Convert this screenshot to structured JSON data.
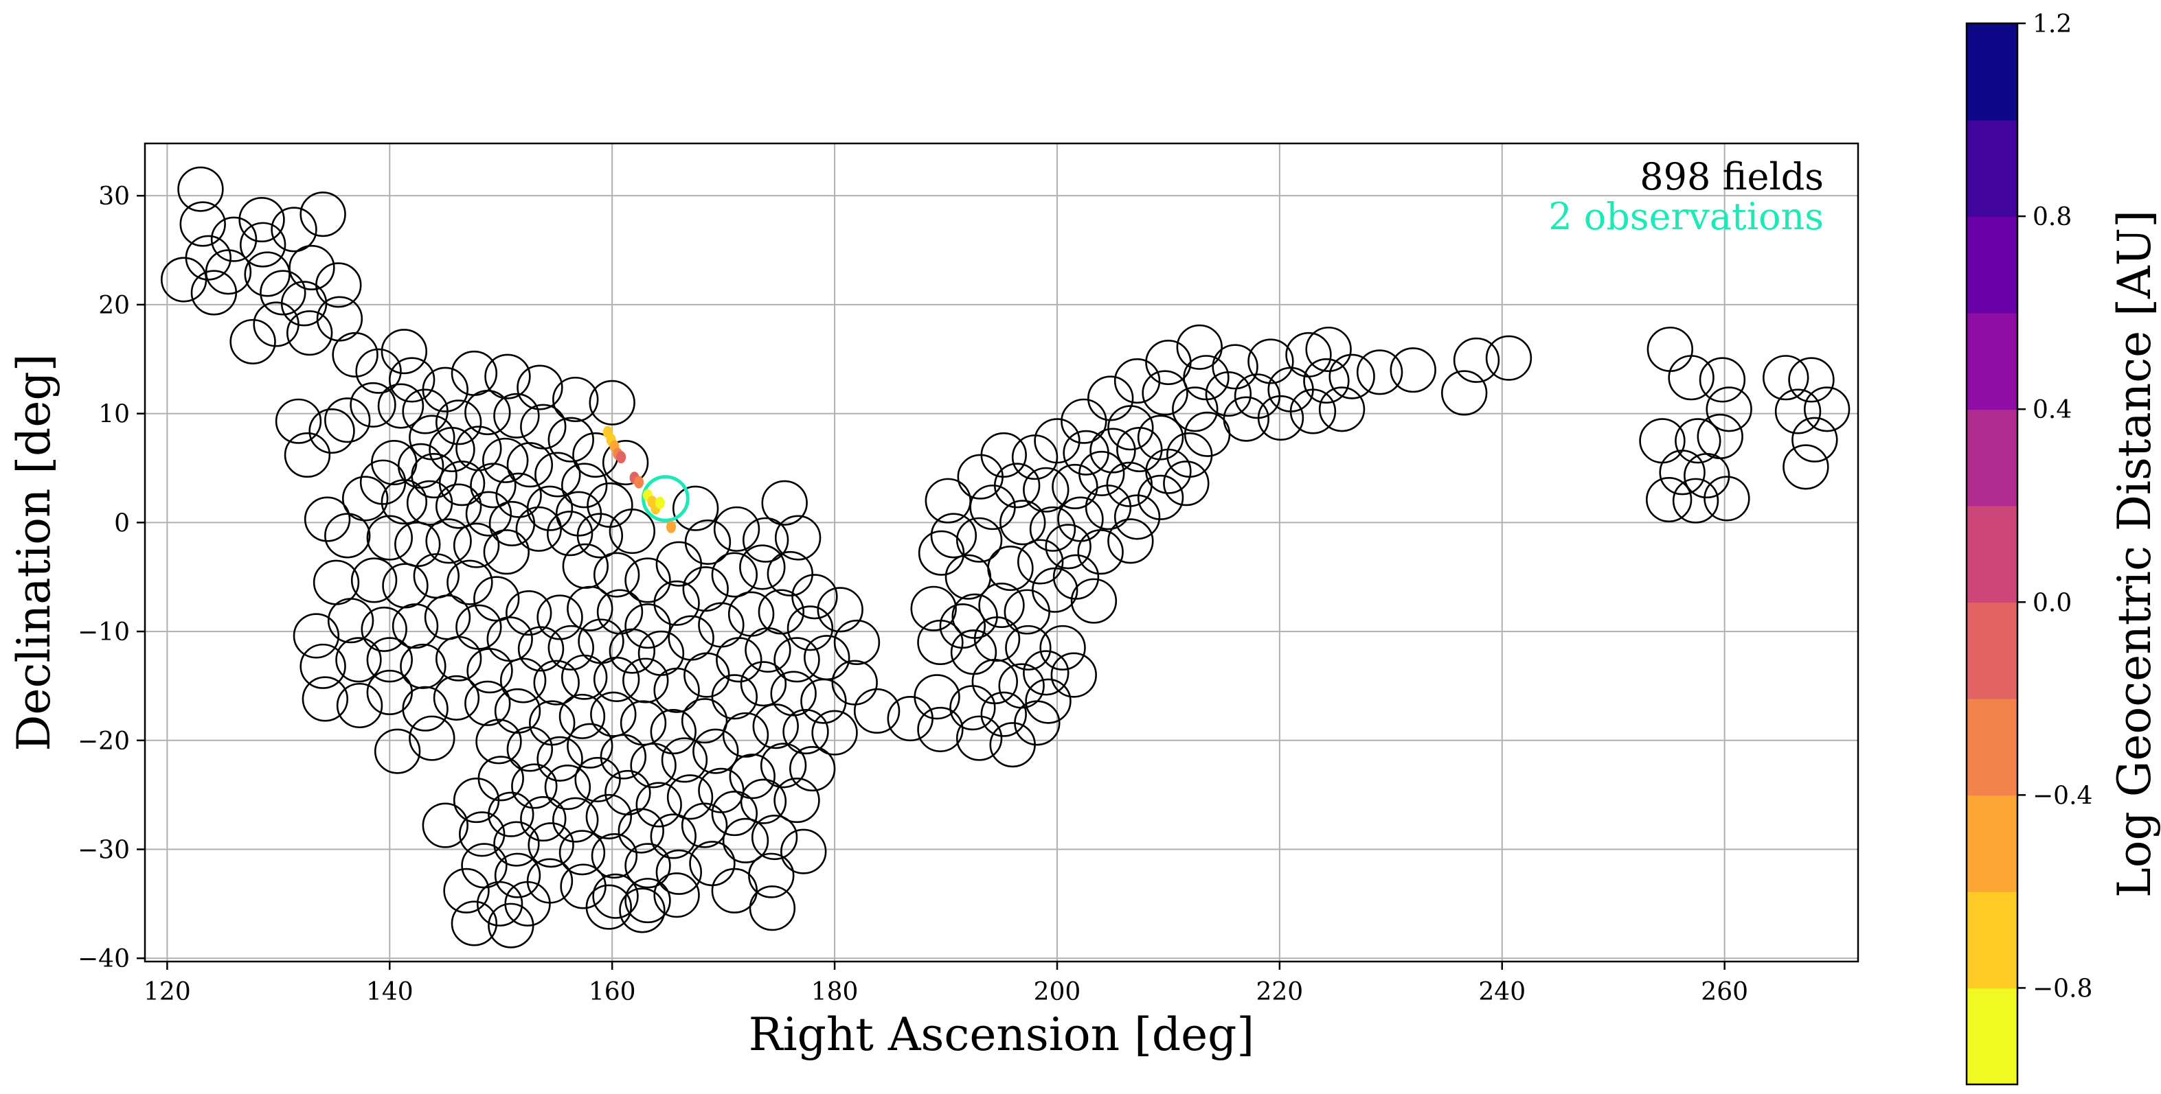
{
  "chart_data": {
    "type": "scatter",
    "xlabel": "Right Ascension [deg]",
    "ylabel": "Declination [deg]",
    "xlim": [
      118,
      272
    ],
    "ylim": [
      -40.3,
      34.8
    ],
    "grid": true,
    "x_ticks": [
      120,
      140,
      160,
      180,
      200,
      220,
      240,
      260
    ],
    "y_ticks": [
      30,
      20,
      10,
      0,
      -10,
      -20,
      -30,
      -40
    ],
    "x_tick_labels": [
      "120",
      "140",
      "160",
      "180",
      "200",
      "220",
      "240",
      "260"
    ],
    "y_tick_labels": [
      "30",
      "20",
      "10",
      "0",
      "−10",
      "−20",
      "−30",
      "−40"
    ],
    "field_radius_deg": 2.0,
    "annotations": {
      "fields_text": "898 fields",
      "observations_text": "2 observations",
      "observations_color": "#1de9b6"
    },
    "highlighted_field": {
      "ra": 164.8,
      "dec": 2.2,
      "color": "#1de9b6"
    },
    "colorbar": {
      "label": "Log Geocentric Distance [AU]",
      "range": [
        -1.0,
        1.2
      ],
      "ticks": [
        1.2,
        0.8,
        0.4,
        0.0,
        -0.4,
        -0.8
      ],
      "tick_labels": [
        "1.2",
        "0.8",
        "0.4",
        "0.0",
        "−0.4",
        "−0.8"
      ],
      "colors": [
        "#f0f921",
        "#fdca26",
        "#fca636",
        "#f2844b",
        "#e16462",
        "#cc4778",
        "#b12a90",
        "#8f0da4",
        "#6a00a8",
        "#41049d",
        "#0d0887"
      ]
    },
    "track": [
      {
        "ra": 159.6,
        "dec": 8.3,
        "logd": -0.75
      },
      {
        "ra": 159.9,
        "dec": 7.6,
        "logd": -0.7
      },
      {
        "ra": 160.2,
        "dec": 7.0,
        "logd": -0.55
      },
      {
        "ra": 160.5,
        "dec": 6.3,
        "logd": -0.25
      },
      {
        "ra": 160.8,
        "dec": 6.0,
        "logd": -0.15
      },
      {
        "ra": 162.0,
        "dec": 4.1,
        "logd": -0.1
      },
      {
        "ra": 162.4,
        "dec": 3.7,
        "logd": -0.3
      },
      {
        "ra": 163.2,
        "dec": 2.5,
        "logd": -0.8
      },
      {
        "ra": 163.6,
        "dec": 1.9,
        "logd": -0.75
      },
      {
        "ra": 163.9,
        "dec": 1.3,
        "logd": -0.7
      },
      {
        "ra": 164.3,
        "dec": 1.8,
        "logd": -0.85
      },
      {
        "ra": 165.3,
        "dec": -0.4,
        "logd": -0.6
      }
    ],
    "fields": [
      [
        123.0,
        30.6
      ],
      [
        128.5,
        27.8
      ],
      [
        134.0,
        28.3
      ],
      [
        123.2,
        27.4
      ],
      [
        126.0,
        26.0
      ],
      [
        128.6,
        25.5
      ],
      [
        131.4,
        26.9
      ],
      [
        123.7,
        24.3
      ],
      [
        129.0,
        22.8
      ],
      [
        125.5,
        23.0
      ],
      [
        133.0,
        23.4
      ],
      [
        121.5,
        22.3
      ],
      [
        135.4,
        21.8
      ],
      [
        124.2,
        21.1
      ],
      [
        130.4,
        21.1
      ],
      [
        132.3,
        20.1
      ],
      [
        129.8,
        18.2
      ],
      [
        135.5,
        18.7
      ],
      [
        132.8,
        17.4
      ],
      [
        127.7,
        16.6
      ],
      [
        136.9,
        15.4
      ],
      [
        141.3,
        15.7
      ],
      [
        139.0,
        13.9
      ],
      [
        142.0,
        13.1
      ],
      [
        131.8,
        9.3
      ],
      [
        138.5,
        10.8
      ],
      [
        136.2,
        9.4
      ],
      [
        132.6,
        6.2
      ],
      [
        134.8,
        8.4
      ],
      [
        141.0,
        10.7
      ],
      [
        143.2,
        10.2
      ],
      [
        145.0,
        12.2
      ],
      [
        147.6,
        13.7
      ],
      [
        150.6,
        13.4
      ],
      [
        153.5,
        12.4
      ],
      [
        156.7,
        11.3
      ],
      [
        160.0,
        11.0
      ],
      [
        143.8,
        7.8
      ],
      [
        146.2,
        9.2
      ],
      [
        148.8,
        10.1
      ],
      [
        151.4,
        9.8
      ],
      [
        153.8,
        8.8
      ],
      [
        156.3,
        7.6
      ],
      [
        158.5,
        6.2
      ],
      [
        161.2,
        5.5
      ],
      [
        140.4,
        5.5
      ],
      [
        142.8,
        5.2
      ],
      [
        145.6,
        6.7
      ],
      [
        148.0,
        6.8
      ],
      [
        150.4,
        5.7
      ],
      [
        152.6,
        5.3
      ],
      [
        155.1,
        4.4
      ],
      [
        157.5,
        3.4
      ],
      [
        139.4,
        3.7
      ],
      [
        144.0,
        4.3
      ],
      [
        146.5,
        3.6
      ],
      [
        149.3,
        3.4
      ],
      [
        151.6,
        2.5
      ],
      [
        154.4,
        1.3
      ],
      [
        157.0,
        0.8
      ],
      [
        159.8,
        1.6
      ],
      [
        134.4,
        0.3
      ],
      [
        137.8,
        2.2
      ],
      [
        141.3,
        1.9
      ],
      [
        143.6,
        1.8
      ],
      [
        146.2,
        1.5
      ],
      [
        148.9,
        0.8
      ],
      [
        151.0,
        -0.1
      ],
      [
        153.4,
        -0.6
      ],
      [
        156.2,
        -1.0
      ],
      [
        158.9,
        -1.2
      ],
      [
        161.8,
        -0.8
      ],
      [
        167.5,
        1.3
      ],
      [
        175.5,
        1.8
      ],
      [
        136.2,
        -1.2
      ],
      [
        140.0,
        -1.4
      ],
      [
        142.5,
        -2.0
      ],
      [
        145.3,
        -1.7
      ],
      [
        147.8,
        -2.1
      ],
      [
        150.5,
        -2.7
      ],
      [
        157.6,
        -4.0
      ],
      [
        160.4,
        -4.8
      ],
      [
        163.2,
        -5.3
      ],
      [
        166.0,
        -3.8
      ],
      [
        168.6,
        -1.8
      ],
      [
        171.2,
        -0.6
      ],
      [
        173.8,
        -1.6
      ],
      [
        176.7,
        -1.4
      ],
      [
        135.2,
        -5.5
      ],
      [
        138.6,
        -5.3
      ],
      [
        141.4,
        -5.8
      ],
      [
        144.2,
        -4.9
      ],
      [
        147.2,
        -5.5
      ],
      [
        149.6,
        -7.0
      ],
      [
        152.5,
        -8.3
      ],
      [
        155.3,
        -8.7
      ],
      [
        158.0,
        -7.9
      ],
      [
        160.7,
        -8.2
      ],
      [
        163.2,
        -9.5
      ],
      [
        165.8,
        -7.4
      ],
      [
        168.4,
        -6.1
      ],
      [
        171.0,
        -4.8
      ],
      [
        173.5,
        -4.1
      ],
      [
        176.0,
        -4.7
      ],
      [
        178.2,
        -6.8
      ],
      [
        133.4,
        -10.4
      ],
      [
        136.5,
        -9.0
      ],
      [
        139.5,
        -9.8
      ],
      [
        142.3,
        -9.5
      ],
      [
        145.2,
        -8.7
      ],
      [
        148.0,
        -9.6
      ],
      [
        150.8,
        -10.7
      ],
      [
        153.6,
        -11.6
      ],
      [
        156.3,
        -11.5
      ],
      [
        159.0,
        -10.9
      ],
      [
        161.8,
        -11.8
      ],
      [
        164.4,
        -12.0
      ],
      [
        167.1,
        -10.6
      ],
      [
        169.8,
        -9.4
      ],
      [
        172.5,
        -8.4
      ],
      [
        175.2,
        -8.2
      ],
      [
        177.8,
        -9.7
      ],
      [
        180.5,
        -8.0
      ],
      [
        134.0,
        -13.2
      ],
      [
        137.2,
        -12.6
      ],
      [
        140.0,
        -12.6
      ],
      [
        143.0,
        -13.2
      ],
      [
        146.2,
        -12.5
      ],
      [
        149.0,
        -13.6
      ],
      [
        152.0,
        -14.5
      ],
      [
        155.0,
        -14.7
      ],
      [
        157.5,
        -14.2
      ],
      [
        160.4,
        -14.4
      ],
      [
        163.0,
        -14.5
      ],
      [
        165.8,
        -15.4
      ],
      [
        168.5,
        -14.0
      ],
      [
        171.4,
        -12.6
      ],
      [
        174.0,
        -11.7
      ],
      [
        176.6,
        -12.6
      ],
      [
        179.3,
        -12.4
      ],
      [
        182.0,
        -11.0
      ],
      [
        134.2,
        -16.2
      ],
      [
        137.3,
        -16.8
      ],
      [
        140.0,
        -15.6
      ],
      [
        143.2,
        -17.1
      ],
      [
        146.0,
        -16.1
      ],
      [
        148.8,
        -16.6
      ],
      [
        151.5,
        -17.3
      ],
      [
        154.6,
        -18.4
      ],
      [
        157.3,
        -17.8
      ],
      [
        160.1,
        -17.6
      ],
      [
        162.8,
        -18.4
      ],
      [
        165.5,
        -19.2
      ],
      [
        168.3,
        -18.2
      ],
      [
        171.0,
        -16.0
      ],
      [
        173.6,
        -14.8
      ],
      [
        176.3,
        -15.7
      ],
      [
        179.0,
        -16.4
      ],
      [
        181.8,
        -14.7
      ],
      [
        183.8,
        -17.3
      ],
      [
        140.7,
        -21.0
      ],
      [
        143.8,
        -19.8
      ],
      [
        149.8,
        -20.1
      ],
      [
        152.6,
        -20.8
      ],
      [
        155.3,
        -21.7
      ],
      [
        158.0,
        -20.5
      ],
      [
        161.0,
        -21.5
      ],
      [
        163.7,
        -22.3
      ],
      [
        166.5,
        -21.8
      ],
      [
        169.3,
        -21.0
      ],
      [
        172.0,
        -19.5
      ],
      [
        174.7,
        -18.7
      ],
      [
        177.4,
        -19.2
      ],
      [
        180.0,
        -19.3
      ],
      [
        150.0,
        -23.5
      ],
      [
        153.0,
        -24.2
      ],
      [
        156.0,
        -24.3
      ],
      [
        158.7,
        -23.6
      ],
      [
        161.4,
        -24.8
      ],
      [
        164.2,
        -25.9
      ],
      [
        167.0,
        -25.2
      ],
      [
        169.8,
        -24.6
      ],
      [
        172.6,
        -23.3
      ],
      [
        175.4,
        -22.3
      ],
      [
        178.0,
        -22.6
      ],
      [
        147.8,
        -25.5
      ],
      [
        150.9,
        -26.8
      ],
      [
        153.8,
        -27.2
      ],
      [
        156.7,
        -27.3
      ],
      [
        159.7,
        -27.0
      ],
      [
        162.6,
        -28.3
      ],
      [
        165.5,
        -28.8
      ],
      [
        168.3,
        -27.8
      ],
      [
        171.0,
        -26.7
      ],
      [
        173.6,
        -25.6
      ],
      [
        176.6,
        -25.5
      ],
      [
        145.0,
        -27.8
      ],
      [
        148.3,
        -28.6
      ],
      [
        151.4,
        -29.5
      ],
      [
        154.5,
        -29.6
      ],
      [
        157.3,
        -30.3
      ],
      [
        160.2,
        -30.6
      ],
      [
        163.2,
        -31.5
      ],
      [
        166.0,
        -32.1
      ],
      [
        169.0,
        -31.3
      ],
      [
        172.0,
        -29.2
      ],
      [
        174.6,
        -28.9
      ],
      [
        177.2,
        -30.2
      ],
      [
        148.5,
        -31.5
      ],
      [
        151.5,
        -32.4
      ],
      [
        154.4,
        -32.9
      ],
      [
        157.4,
        -33.4
      ],
      [
        160.3,
        -34.3
      ],
      [
        163.2,
        -34.7
      ],
      [
        165.8,
        -34.2
      ],
      [
        171.0,
        -33.8
      ],
      [
        174.3,
        -32.4
      ],
      [
        146.9,
        -33.8
      ],
      [
        149.9,
        -35.0
      ],
      [
        152.4,
        -35.0
      ],
      [
        159.7,
        -35.3
      ],
      [
        162.7,
        -35.6
      ],
      [
        174.4,
        -35.4
      ],
      [
        147.6,
        -36.8
      ],
      [
        150.9,
        -37.0
      ],
      [
        186.8,
        -18.0
      ],
      [
        189.2,
        -16.0
      ],
      [
        189.5,
        -19.0
      ],
      [
        192.4,
        -17.0
      ],
      [
        193.0,
        -19.8
      ],
      [
        195.2,
        -17.6
      ],
      [
        196.0,
        -20.4
      ],
      [
        198.2,
        -18.4
      ],
      [
        199.2,
        -16.4
      ],
      [
        196.8,
        -15.0
      ],
      [
        194.4,
        -14.6
      ],
      [
        188.9,
        -7.9
      ],
      [
        189.5,
        -11.0
      ],
      [
        191.5,
        -9.5
      ],
      [
        192.5,
        -11.9
      ],
      [
        194.6,
        -10.7
      ],
      [
        197.4,
        -11.5
      ],
      [
        200.5,
        -11.5
      ],
      [
        199.0,
        -13.8
      ],
      [
        201.5,
        -14.0
      ],
      [
        189.6,
        -2.8
      ],
      [
        192.0,
        -5.0
      ],
      [
        192.6,
        -8.6
      ],
      [
        195.0,
        -7.6
      ],
      [
        197.3,
        -8.2
      ],
      [
        199.8,
        -6.2
      ],
      [
        201.7,
        -5.0
      ],
      [
        203.3,
        -7.2
      ],
      [
        190.7,
        -1.2
      ],
      [
        193.0,
        -1.6
      ],
      [
        195.8,
        -4.2
      ],
      [
        198.5,
        -3.6
      ],
      [
        201.0,
        -2.2
      ],
      [
        203.9,
        -2.7
      ],
      [
        206.6,
        -1.7
      ],
      [
        190.2,
        2.0
      ],
      [
        193.1,
        4.2
      ],
      [
        194.2,
        1.4
      ],
      [
        196.9,
        0.0
      ],
      [
        199.6,
        -0.6
      ],
      [
        202.1,
        0.3
      ],
      [
        204.6,
        1.4
      ],
      [
        207.2,
        0.5
      ],
      [
        195.2,
        6.2
      ],
      [
        196.4,
        3.4
      ],
      [
        199.0,
        3.0
      ],
      [
        201.6,
        3.3
      ],
      [
        204.0,
        4.5
      ],
      [
        206.5,
        3.5
      ],
      [
        209.3,
        2.3
      ],
      [
        198.0,
        6.0
      ],
      [
        200.0,
        7.5
      ],
      [
        202.6,
        6.4
      ],
      [
        205.0,
        6.6
      ],
      [
        207.4,
        6.7
      ],
      [
        210.0,
        4.7
      ],
      [
        211.6,
        3.6
      ],
      [
        202.4,
        9.3
      ],
      [
        204.8,
        11.4
      ],
      [
        206.6,
        8.7
      ],
      [
        209.3,
        7.8
      ],
      [
        211.9,
        6.2
      ],
      [
        207.2,
        13.0
      ],
      [
        209.7,
        11.9
      ],
      [
        212.4,
        10.4
      ],
      [
        213.5,
        8.1
      ],
      [
        215.4,
        11.8
      ],
      [
        210.0,
        14.7
      ],
      [
        212.8,
        16.1
      ],
      [
        213.4,
        13.3
      ],
      [
        216.0,
        14.3
      ],
      [
        218.0,
        11.6
      ],
      [
        217.0,
        9.5
      ],
      [
        219.2,
        14.8
      ],
      [
        221.0,
        12.2
      ],
      [
        222.6,
        15.4
      ],
      [
        224.2,
        13.0
      ],
      [
        224.4,
        15.9
      ],
      [
        226.5,
        13.4
      ],
      [
        220.1,
        9.6
      ],
      [
        223.0,
        10.2
      ],
      [
        225.6,
        10.4
      ],
      [
        229.0,
        13.8
      ],
      [
        232.0,
        14.0
      ],
      [
        237.7,
        14.9
      ],
      [
        240.6,
        15.1
      ],
      [
        236.6,
        11.9
      ],
      [
        255.1,
        15.9
      ],
      [
        257.0,
        13.3
      ],
      [
        259.8,
        13.1
      ],
      [
        260.4,
        10.4
      ],
      [
        254.4,
        7.5
      ],
      [
        257.6,
        7.5
      ],
      [
        259.6,
        7.9
      ],
      [
        256.2,
        4.6
      ],
      [
        258.4,
        4.3
      ],
      [
        255.0,
        2.1
      ],
      [
        257.4,
        2.0
      ],
      [
        260.2,
        2.2
      ],
      [
        265.5,
        13.3
      ],
      [
        267.8,
        13.1
      ],
      [
        266.6,
        10.2
      ],
      [
        269.2,
        10.4
      ],
      [
        268.1,
        7.6
      ],
      [
        267.3,
        5.1
      ]
    ]
  }
}
